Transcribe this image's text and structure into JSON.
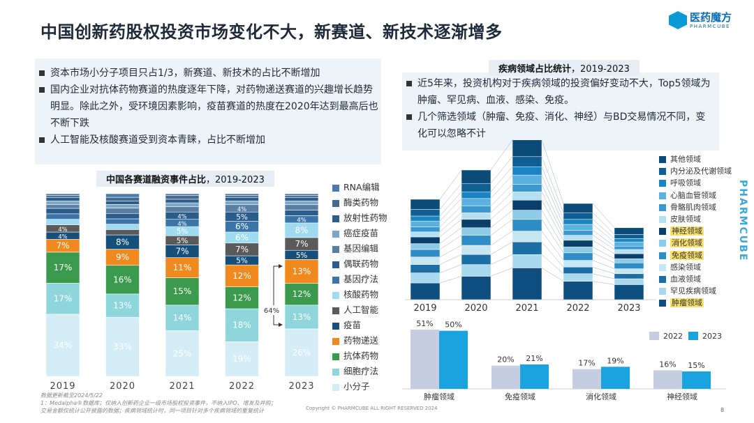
{
  "header": {
    "title": "中国创新药股权投资市场变化不大，新赛道、新技术逐渐增多"
  },
  "logo": {
    "name": "医药魔方",
    "sub": "PHARMCUBE"
  },
  "side_label": "PHARMCUBE",
  "left_bullets": [
    "资本市场小分子项目只占1/3，新赛道、新技术的占比不断增加",
    "国内企业对抗体药物赛道的热度逐年下降，对药物递送赛道的兴趣增长趋势明显。除此之外，受环境因素影响，疫苗赛道的热度在2020年达到最高后也不断下跌",
    "人工智能及核酸赛道受到资本青睐，占比不断增加"
  ],
  "right_bullets": [
    "近5年来，投资机构对于疾病领域的投资偏好变动不大，Top5领域为肿瘤、罕见病、血液、感染、免疫。",
    "几个筛选领域（肿瘤、免疫、消化、神经）与BD交易情况不同，变化可以忽略不计"
  ],
  "chart_data": [
    {
      "type": "bar",
      "title": "中国各赛道融资事件占比，2019-2023",
      "title_main": "中国各赛道融资事件占比",
      "title_year": "，2019-2023",
      "categories": [
        "2019",
        "2020",
        "2021",
        "2022",
        "2023"
      ],
      "stacked": true,
      "annotation": "64%",
      "series": [
        {
          "name": "小分子",
          "color": "#d3ecf6",
          "values": [
            34,
            33,
            25,
            19,
            26
          ]
        },
        {
          "name": "细胞疗法",
          "color": "#8fd6dc",
          "values": [
            17,
            13,
            14,
            18,
            13
          ]
        },
        {
          "name": "抗体药物",
          "color": "#3c9a4e",
          "values": [
            17,
            16,
            15,
            12,
            12
          ]
        },
        {
          "name": "药物递送",
          "color": "#f08a1f",
          "values": [
            7,
            9,
            11,
            12,
            13
          ]
        },
        {
          "name": "疫苗",
          "color": "#164f7a",
          "values": [
            4,
            8,
            7,
            5,
            5
          ]
        },
        {
          "name": "人工智能",
          "color": "#5a5a5a",
          "values": [
            4,
            3,
            5,
            7,
            7
          ]
        },
        {
          "name": "核酸药物",
          "color": "#9edaf0",
          "values": [
            3,
            3,
            5,
            6,
            8
          ]
        },
        {
          "name": "基因疗法",
          "color": "#3a74a8",
          "values": [
            3,
            3,
            4,
            6,
            4
          ]
        },
        {
          "name": "偶联药物",
          "color": "#2a5c8c",
          "values": [
            3,
            3,
            4,
            5,
            3
          ]
        },
        {
          "name": "基因编辑",
          "color": "#5a7da3",
          "values": [
            2,
            3,
            3,
            4,
            3
          ]
        },
        {
          "name": "癌症疫苗",
          "color": "#7aa6c8",
          "values": [
            2,
            2,
            2,
            2,
            2
          ]
        },
        {
          "name": "放射性药物",
          "color": "#2c5d8a",
          "values": [
            2,
            2,
            2,
            2,
            2
          ]
        },
        {
          "name": "酶类药物",
          "color": "#46698f",
          "values": [
            1,
            2,
            2,
            1,
            1
          ]
        },
        {
          "name": "RNA编辑",
          "color": "#4a7aa8",
          "values": [
            1,
            2,
            1,
            1,
            1
          ]
        }
      ],
      "labels": [
        [
          "34%",
          "17%",
          "17%",
          "7%",
          "4%",
          "4%",
          "3%",
          "3%",
          "3%",
          "2%",
          "2%",
          "2%",
          "1%",
          "1%"
        ],
        [
          "33%",
          "13%",
          "16%",
          "9%",
          "8%",
          "3%",
          "3%",
          "3%",
          "3%",
          "3%",
          "2%",
          "2%",
          "2%",
          "2%"
        ],
        [
          "25%",
          "14%",
          "15%",
          "11%",
          "7%",
          "5%",
          "5%",
          "4%",
          "4%",
          "3%",
          "2%",
          "2%",
          "2%",
          "1%"
        ],
        [
          "19%",
          "18%",
          "12%",
          "12%",
          "5%",
          "7%",
          "6%",
          "6%",
          "5%",
          "4%",
          "2%",
          "2%",
          "1%",
          "1%"
        ],
        [
          "26%",
          "13%",
          "12%",
          "13%",
          "5%",
          "7%",
          "8%",
          "4%",
          "3%",
          "3%",
          "2%",
          "2%",
          "1%",
          "1%"
        ]
      ]
    },
    {
      "type": "bar",
      "title": "疾病领域占比统计，2019-2023",
      "title_main": "疾病领域占比统计",
      "title_year": "，2019-2023",
      "categories": [
        "2019",
        "2020",
        "2021",
        "2022",
        "2023"
      ],
      "stacked": true,
      "series": [
        {
          "name": "肿瘤领域",
          "color": "#0e4f80",
          "highlight": true,
          "values": [
            20,
            28,
            38,
            22,
            18
          ]
        },
        {
          "name": "罕见疾病领域",
          "color": "#a9d9ef",
          "highlight": false,
          "values": [
            12,
            14,
            16,
            9,
            7
          ]
        },
        {
          "name": "血液领域",
          "color": "#1b6fa5",
          "highlight": false,
          "values": [
            10,
            12,
            15,
            8,
            6
          ]
        },
        {
          "name": "感染领域",
          "color": "#c7e6f4",
          "highlight": false,
          "values": [
            9,
            11,
            13,
            8,
            6
          ]
        },
        {
          "name": "免疫领域",
          "color": "#2f8dc6",
          "highlight": true,
          "values": [
            9,
            12,
            14,
            9,
            7
          ]
        },
        {
          "name": "消化领域",
          "color": "#8dcbe8",
          "highlight": true,
          "values": [
            7,
            9,
            11,
            7,
            5
          ]
        },
        {
          "name": "神经领域",
          "color": "#0b3f6b",
          "highlight": true,
          "values": [
            8,
            10,
            12,
            8,
            6
          ]
        },
        {
          "name": "皮肤领域",
          "color": "#b6dff2",
          "highlight": false,
          "values": [
            6,
            8,
            10,
            6,
            5
          ]
        },
        {
          "name": "骨骼肌肉领域",
          "color": "#3a97cf",
          "highlight": false,
          "values": [
            6,
            8,
            9,
            6,
            4
          ]
        },
        {
          "name": "心脑血管领域",
          "color": "#5ab0de",
          "highlight": false,
          "values": [
            7,
            9,
            11,
            7,
            5
          ]
        },
        {
          "name": "呼吸领域",
          "color": "#1a85c2",
          "highlight": false,
          "values": [
            6,
            8,
            10,
            6,
            4
          ]
        },
        {
          "name": "内分泌及代谢领域",
          "color": "#0f5e94",
          "highlight": false,
          "values": [
            8,
            10,
            12,
            8,
            5
          ]
        },
        {
          "name": "其他领域",
          "color": "#0c4a78",
          "highlight": false,
          "values": [
            12,
            16,
            20,
            11,
            8
          ]
        }
      ]
    },
    {
      "type": "bar",
      "categories": [
        "肿瘤领域",
        "免疫领域",
        "消化领域",
        "神经领域"
      ],
      "series": [
        {
          "name": "2022",
          "color": "#c7cde0",
          "values": [
            51,
            20,
            17,
            16
          ]
        },
        {
          "name": "2023",
          "color": "#1aa3de",
          "values": [
            50,
            21,
            19,
            15
          ]
        }
      ],
      "value_labels": [
        [
          "51%",
          "20%",
          "17%",
          "16%"
        ],
        [
          "50%",
          "21%",
          "19%",
          "15%"
        ]
      ],
      "ylim": [
        0,
        60
      ]
    }
  ],
  "footnote": [
    "数据更新截至2024/5/22",
    "1：Medalpha®数据库；仅纳入创新药企业一级市场股权投资事件，不纳入IPO、增发及并购；",
    "交易金额仅统计公开披露的数据；疾病领域统计时，同一项目针对多个疾病领域的重复统计"
  ],
  "copyright": "Copyright © PHARMCUBE ALL RIGHT RESERVED 2024",
  "page_number": "8"
}
